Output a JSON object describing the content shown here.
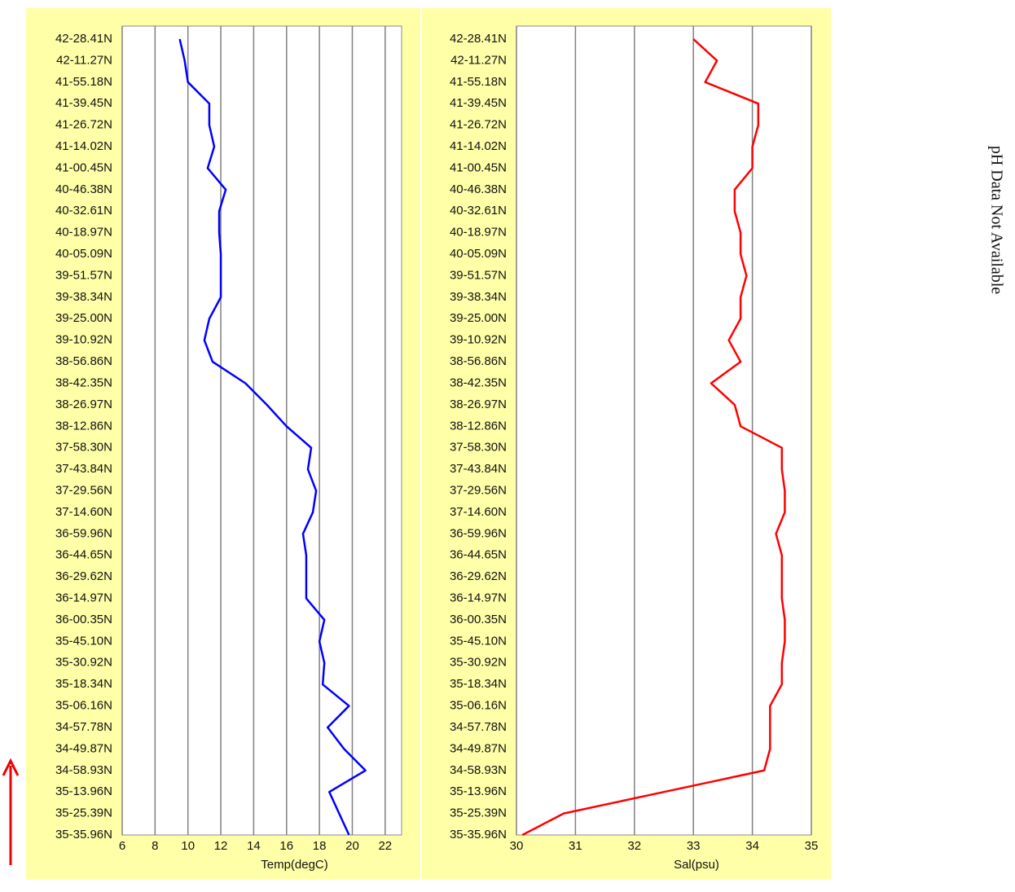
{
  "chart_data": [
    {
      "type": "line",
      "color": "#0000ff",
      "xlabel": "Temp(degC)",
      "xlim": [
        6,
        23
      ],
      "xticks": [
        6,
        8,
        10,
        12,
        14,
        16,
        18,
        20,
        22
      ],
      "grid": true,
      "categories": [
        "42-28.41N",
        "42-11.27N",
        "41-55.18N",
        "41-39.45N",
        "41-26.72N",
        "41-14.02N",
        "41-00.45N",
        "40-46.38N",
        "40-32.61N",
        "40-18.97N",
        "40-05.09N",
        "39-51.57N",
        "39-38.34N",
        "39-25.00N",
        "39-10.92N",
        "38-56.86N",
        "38-42.35N",
        "38-26.97N",
        "38-12.86N",
        "37-58.30N",
        "37-43.84N",
        "37-29.56N",
        "37-14.60N",
        "36-59.96N",
        "36-44.65N",
        "36-29.62N",
        "36-14.97N",
        "36-00.35N",
        "35-45.10N",
        "35-30.92N",
        "35-18.34N",
        "35-06.16N",
        "34-57.78N",
        "34-49.87N",
        "34-58.93N",
        "35-13.96N",
        "35-25.39N",
        "35-35.96N"
      ],
      "values": [
        9.5,
        9.8,
        10.0,
        11.3,
        11.3,
        11.6,
        11.2,
        12.3,
        11.9,
        11.9,
        12.0,
        12.0,
        12.0,
        11.3,
        11.0,
        11.5,
        13.5,
        14.8,
        16.0,
        17.5,
        17.3,
        17.8,
        17.6,
        17.0,
        17.2,
        17.2,
        17.2,
        18.3,
        18.0,
        18.3,
        18.2,
        19.8,
        18.5,
        19.5,
        20.8,
        18.6,
        19.2,
        19.8
      ]
    },
    {
      "type": "line",
      "color": "#ff0000",
      "xlabel": "Sal(psu)",
      "xlim": [
        30,
        35
      ],
      "xticks": [
        30,
        31,
        32,
        33,
        34,
        35
      ],
      "grid": true,
      "categories": [
        "42-28.41N",
        "42-11.27N",
        "41-55.18N",
        "41-39.45N",
        "41-26.72N",
        "41-14.02N",
        "41-00.45N",
        "40-46.38N",
        "40-32.61N",
        "40-18.97N",
        "40-05.09N",
        "39-51.57N",
        "39-38.34N",
        "39-25.00N",
        "39-10.92N",
        "38-56.86N",
        "38-42.35N",
        "38-26.97N",
        "38-12.86N",
        "37-58.30N",
        "37-43.84N",
        "37-29.56N",
        "37-14.60N",
        "36-59.96N",
        "36-44.65N",
        "36-29.62N",
        "36-14.97N",
        "36-00.35N",
        "35-45.10N",
        "35-30.92N",
        "35-18.34N",
        "35-06.16N",
        "34-57.78N",
        "34-49.87N",
        "34-58.93N",
        "35-13.96N",
        "35-25.39N",
        "35-35.96N"
      ],
      "values": [
        33.0,
        33.4,
        33.2,
        34.1,
        34.1,
        34.0,
        34.0,
        33.7,
        33.7,
        33.8,
        33.8,
        33.9,
        33.8,
        33.8,
        33.6,
        33.8,
        33.3,
        33.7,
        33.8,
        34.5,
        34.5,
        34.55,
        34.55,
        34.4,
        34.5,
        34.5,
        34.5,
        34.55,
        34.55,
        34.5,
        34.5,
        34.3,
        34.3,
        34.3,
        34.2,
        32.5,
        30.8,
        30.1
      ]
    }
  ],
  "side_note": "pH Data Not Available"
}
